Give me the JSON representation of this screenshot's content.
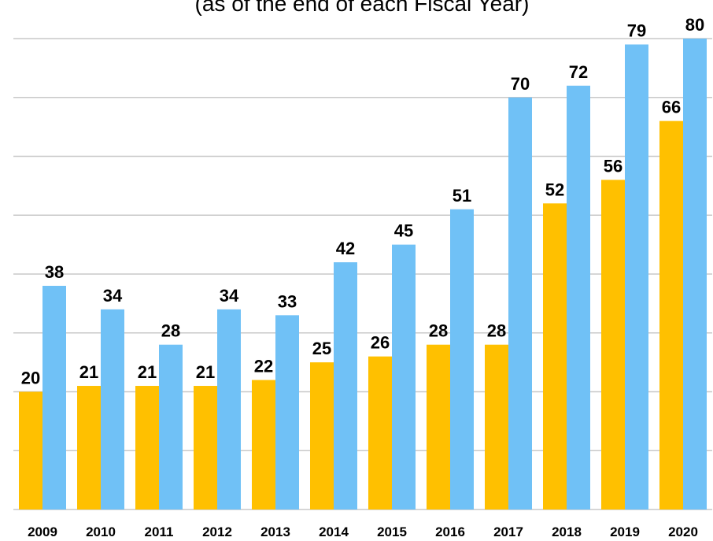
{
  "chart_data": {
    "type": "bar",
    "subtitle": "(as of the end of each Fiscal Year)",
    "categories": [
      "2009",
      "2010",
      "2011",
      "2012",
      "2013",
      "2014",
      "2015",
      "2016",
      "2017",
      "2018",
      "2019",
      "2020"
    ],
    "series": [
      {
        "color": "#ffc000",
        "values": [
          20,
          21,
          21,
          21,
          22,
          25,
          26,
          28,
          28,
          52,
          56,
          66
        ]
      },
      {
        "color": "#70c1f6",
        "values": [
          38,
          34,
          28,
          34,
          33,
          42,
          45,
          51,
          70,
          72,
          79,
          80
        ]
      }
    ],
    "ylim": [
      0,
      80
    ],
    "yticks": [
      0,
      10,
      20,
      30,
      40,
      50,
      60,
      70,
      80
    ],
    "grid": true
  }
}
